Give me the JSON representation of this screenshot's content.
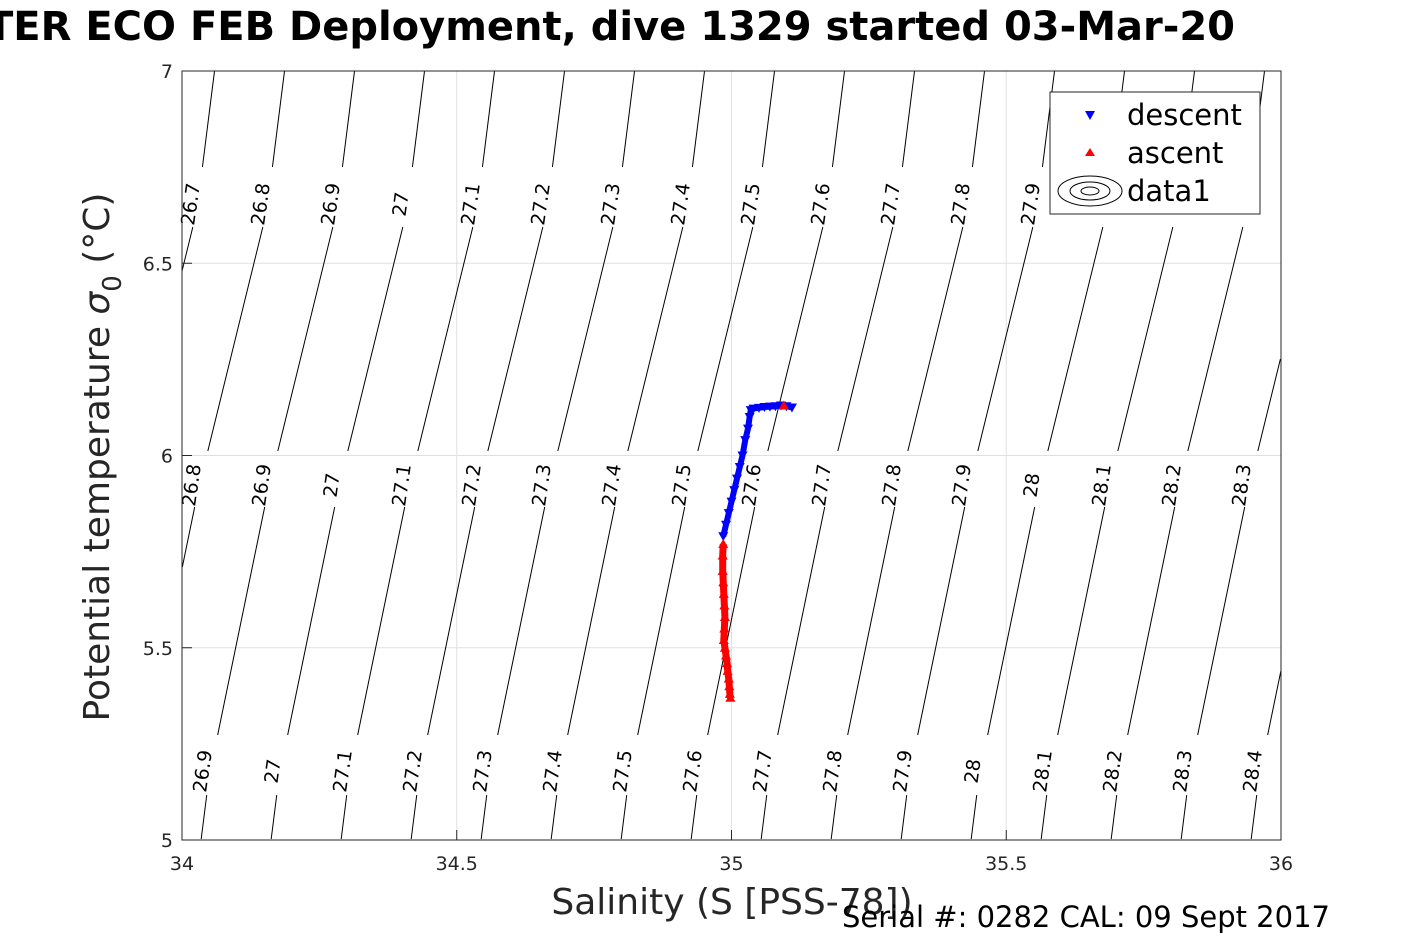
{
  "title": "TER ECO FEB Deployment, dive 1329 started 03-Mar-20",
  "footer": "Serial #: 0282  CAL: 09 Sept 2017",
  "chart_data": {
    "type": "scatter",
    "xlabel": "Salinity (S [PSS-78])",
    "ylabel_main": "Potential temperature ",
    "ylabel_sym": "σ",
    "ylabel_sub": "0",
    "ylabel_unit": " (°C)",
    "xlim": [
      34,
      36
    ],
    "ylim": [
      5,
      7
    ],
    "xticks": [
      34,
      34.5,
      35,
      35.5,
      36
    ],
    "yticks": [
      5,
      5.5,
      6,
      6.5,
      7
    ],
    "xtick_labels": [
      "34",
      "34.5",
      "35",
      "35.5",
      "36"
    ],
    "ytick_labels": [
      "5",
      "5.5",
      "6",
      "6.5",
      "7"
    ],
    "grid": true,
    "legend_position": "top-right",
    "contour_labels": {
      "top": [
        "26.7",
        "26.8",
        "26.9",
        "27",
        "27.1",
        "27.2",
        "27.3",
        "27.4",
        "27.5",
        "27.6",
        "27.7",
        "27.8",
        "27.9"
      ],
      "middle": [
        "26.8",
        "26.9",
        "27",
        "27.1",
        "27.2",
        "27.3",
        "27.4",
        "27.5",
        "27.6",
        "27.7",
        "27.8",
        "27.9",
        "28",
        "28.1",
        "28.2",
        "28.3"
      ],
      "bottom": [
        "26.9",
        "27",
        "27.1",
        "27.2",
        "27.3",
        "27.4",
        "27.5",
        "27.6",
        "27.7",
        "27.8",
        "27.9",
        "28",
        "28.1",
        "28.2",
        "28.3",
        "28.4"
      ]
    },
    "series": [
      {
        "name": "descent",
        "color": "#0000ff",
        "marker": "triangle-down",
        "x": [
          35.11,
          35.1,
          35.09,
          35.08,
          35.07,
          35.06,
          35.05,
          35.04,
          35.035,
          35.033,
          35.03,
          35.025,
          35.02,
          35.015,
          35.01,
          35.005,
          35.0,
          34.995,
          34.99,
          34.985
        ],
        "y": [
          6.125,
          6.128,
          6.13,
          6.128,
          6.127,
          6.126,
          6.124,
          6.122,
          6.118,
          6.1,
          6.07,
          6.04,
          6.0,
          5.97,
          5.94,
          5.91,
          5.88,
          5.85,
          5.82,
          5.79
        ]
      },
      {
        "name": "ascent",
        "color": "#ff0000",
        "marker": "triangle-up",
        "x": [
          35.095,
          34.985,
          34.984,
          34.984,
          34.985,
          34.986,
          34.987,
          34.988,
          34.987,
          34.986,
          34.988,
          34.99,
          34.992,
          34.993,
          34.995,
          34.996,
          34.997,
          34.998
        ],
        "y": [
          6.13,
          5.77,
          5.74,
          5.7,
          5.67,
          5.64,
          5.61,
          5.58,
          5.55,
          5.52,
          5.5,
          5.48,
          5.46,
          5.44,
          5.42,
          5.4,
          5.38,
          5.37
        ]
      },
      {
        "name": "data1",
        "color": "#000000",
        "marker": "contour"
      }
    ]
  }
}
